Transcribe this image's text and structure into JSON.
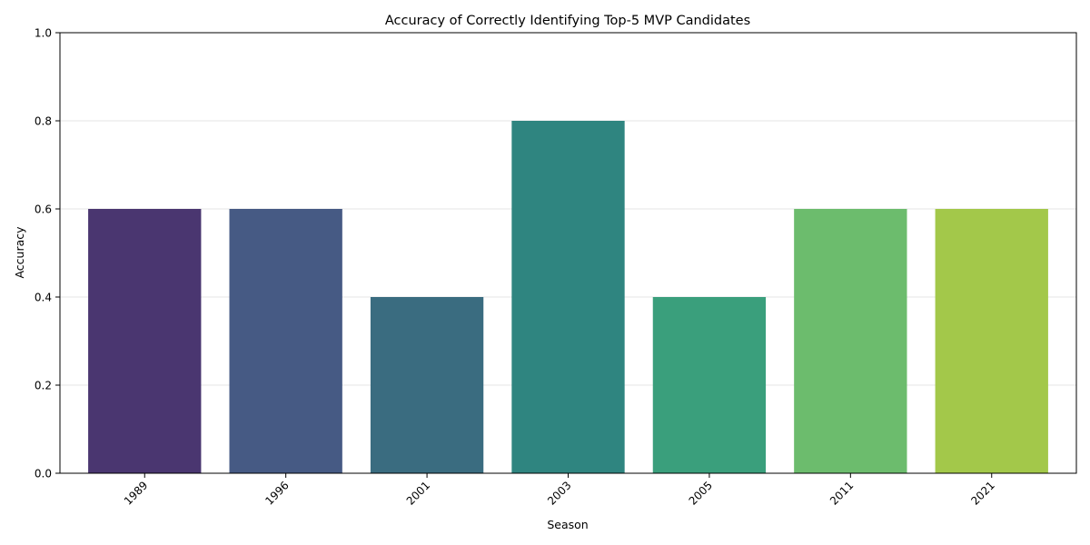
{
  "chart_data": {
    "type": "bar",
    "title": "Accuracy of Correctly Identifying Top-5 MVP Candidates",
    "xlabel": "Season",
    "ylabel": "Accuracy",
    "categories": [
      "1989",
      "1996",
      "2001",
      "2003",
      "2005",
      "2011",
      "2021"
    ],
    "values": [
      0.6,
      0.6,
      0.4,
      0.8,
      0.4,
      0.6,
      0.6
    ],
    "colors": [
      "#4a3670",
      "#465a84",
      "#3a6c80",
      "#2f8580",
      "#3a9f7c",
      "#6cbc6d",
      "#a3c84a"
    ],
    "ylim": [
      0,
      1
    ],
    "yticks": [
      "0.0",
      "0.2",
      "0.4",
      "0.6",
      "0.8",
      "1.0"
    ],
    "grid": "y-axis, light",
    "xtick_rotation": 45
  }
}
